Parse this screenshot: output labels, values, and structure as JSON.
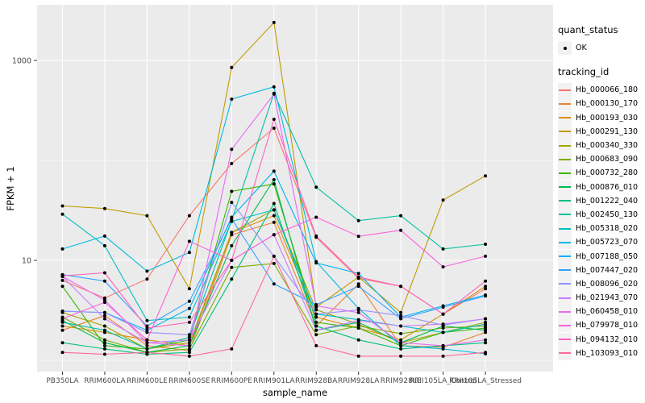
{
  "figure": {
    "background": "#FFFFFF",
    "panel_background": "#EBEBEB",
    "grid_color": "#FFFFFF",
    "point_color": "#000000",
    "axis_text_color": "#4D4D4D"
  },
  "y_axis": {
    "title": "FPKM + 1",
    "tick_labels": [
      "1000",
      "10"
    ],
    "tick_values": [
      1000,
      10
    ],
    "minor_values": [
      100,
      1
    ],
    "scale": "log10"
  },
  "x_axis": {
    "title": "sample_name"
  },
  "legend": {
    "quant_status_title": "quant_status",
    "quant_status_items": [
      {
        "label": "OK",
        "shape": "point"
      }
    ],
    "tracking_id_title": "tracking_id"
  },
  "chart_data": {
    "type": "line",
    "title": "",
    "xlabel": "sample_name",
    "ylabel": "FPKM + 1",
    "y_scale": "log10",
    "ylim": [
      0.8,
      3500
    ],
    "grid": true,
    "legend_position": "right",
    "quant_status": "OK",
    "categories": [
      "PB350LA",
      "RRIM600LA",
      "RRIM600LE",
      "RRIM600SE",
      "RRIM600PE",
      "RRIM901LA",
      "RRIM928BA",
      "RRIM928LA",
      "RRIM928LE",
      "RRII105LA_Control",
      "RRII105LA_Stressed"
    ],
    "series": [
      {
        "name": "Hb_000066_180",
        "color": "#F8766D",
        "values": [
          6.3,
          4.2,
          6.5,
          28,
          93,
          210,
          17,
          6.6,
          5.5,
          2.9,
          5.2
        ]
      },
      {
        "name": "Hb_000130_170",
        "color": "#EA8331",
        "values": [
          2.0,
          2.8,
          1.4,
          1.25,
          18,
          24,
          2.2,
          5.8,
          1.4,
          1.35,
          1.9
        ]
      },
      {
        "name": "Hb_000193_030",
        "color": "#D89000",
        "values": [
          2.2,
          1.9,
          1.6,
          1.4,
          19,
          28,
          2.7,
          2.1,
          1.6,
          2.9,
          5.5
        ]
      },
      {
        "name": "Hb_000291_130",
        "color": "#C09B00",
        "values": [
          35,
          33,
          28,
          5.2,
          850,
          2400,
          3.4,
          6.8,
          3.0,
          40,
          70
        ]
      },
      {
        "name": "Hb_000340_330",
        "color": "#A3A500",
        "values": [
          3.0,
          2.2,
          1.3,
          1.5,
          19,
          32,
          3.2,
          2.3,
          1.5,
          1.9,
          2.4
        ]
      },
      {
        "name": "Hb_000683_090",
        "color": "#7CAE00",
        "values": [
          2.7,
          1.6,
          1.2,
          1.3,
          8.5,
          9.3,
          1.8,
          2.2,
          1.85,
          2.1,
          2.2
        ]
      },
      {
        "name": "Hb_000732_280",
        "color": "#39B600",
        "values": [
          5.5,
          1.4,
          1.3,
          1.6,
          49,
          58,
          2.4,
          2.1,
          1.4,
          1.9,
          2.1
        ]
      },
      {
        "name": "Hb_000876_010",
        "color": "#00BB4E",
        "values": [
          2.5,
          1.5,
          1.2,
          1.4,
          14,
          64,
          2.0,
          2.4,
          1.5,
          2.2,
          2.0
        ]
      },
      {
        "name": "Hb_001222_040",
        "color": "#00BF7D",
        "values": [
          1.5,
          1.3,
          1.15,
          1.2,
          6.5,
          37,
          2.2,
          1.6,
          1.3,
          1.4,
          1.5
        ]
      },
      {
        "name": "Hb_002450_130",
        "color": "#00C1A3",
        "values": [
          2.4,
          2.0,
          1.3,
          1.7,
          25,
          470,
          54,
          25,
          28,
          13,
          14.5
        ]
      },
      {
        "name": "Hb_005318_020",
        "color": "#00BFC4",
        "values": [
          29,
          14,
          2.5,
          2.7,
          24.5,
          32,
          2.9,
          2.55,
          2.2,
          1.9,
          2.3
        ]
      },
      {
        "name": "Hb_005723_070",
        "color": "#00BAE0",
        "values": [
          13,
          17.5,
          7.8,
          12,
          410,
          545,
          9.7,
          3.3,
          1.4,
          1.3,
          1.16
        ]
      },
      {
        "name": "Hb_007188_050",
        "color": "#00B0F6",
        "values": [
          3.1,
          3.0,
          2.0,
          3.3,
          27,
          78,
          9.4,
          7.4,
          2.7,
          3.5,
          4.5
        ]
      },
      {
        "name": "Hb_007447_020",
        "color": "#35A2FF",
        "values": [
          7.2,
          6.2,
          2.2,
          3.9,
          26,
          5.8,
          3.6,
          5.5,
          2.6,
          3.4,
          4.4
        ]
      },
      {
        "name": "Hb_008096_020",
        "color": "#9590FF",
        "values": [
          3.1,
          3.0,
          1.9,
          1.8,
          38,
          11,
          2.9,
          3.2,
          2.8,
          2.25,
          2.6
        ]
      },
      {
        "name": "Hb_021943_070",
        "color": "#C77CFF",
        "values": [
          6.9,
          2.6,
          1.5,
          1.6,
          10,
          18,
          2.0,
          2.5,
          2.2,
          2.3,
          2.6
        ]
      },
      {
        "name": "Hb_060458_010",
        "color": "#E76BF3",
        "values": [
          6.9,
          4.0,
          1.5,
          1.4,
          129,
          460,
          3.5,
          3.0,
          1.5,
          1.4,
          1.6
        ]
      },
      {
        "name": "Hb_079978_010",
        "color": "#FA62DB",
        "values": [
          2.6,
          3.8,
          1.6,
          15.5,
          10,
          18,
          27,
          17.4,
          20,
          8.6,
          11
        ]
      },
      {
        "name": "Hb_094132_010",
        "color": "#FF62BC",
        "values": [
          7.0,
          7.5,
          2.1,
          2.4,
          10,
          258,
          17.5,
          6.8,
          5.5,
          2.9,
          6.2
        ]
      },
      {
        "name": "Hb_103093_010",
        "color": "#FF6A98",
        "values": [
          1.2,
          1.15,
          1.2,
          1.1,
          1.3,
          11,
          1.4,
          1.1,
          1.1,
          1.1,
          1.2
        ]
      }
    ]
  }
}
